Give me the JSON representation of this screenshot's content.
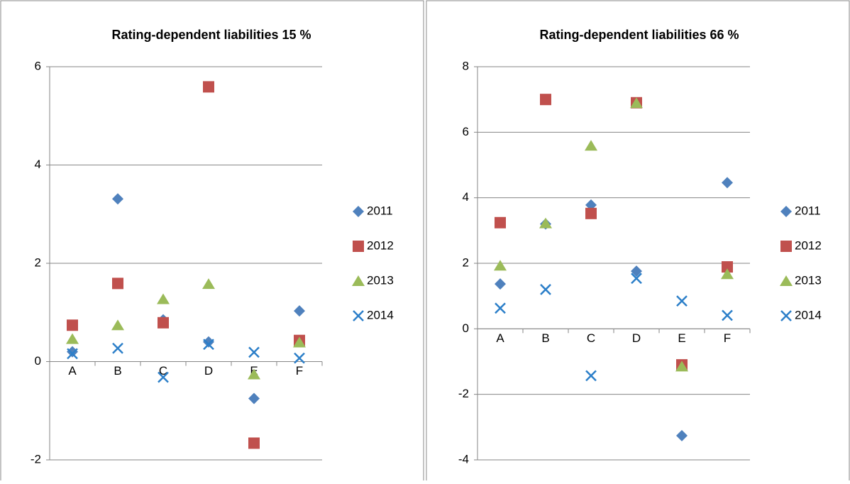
{
  "chart_data": [
    {
      "type": "scatter",
      "title": "Rating-dependent liabilities 15 %",
      "categories": [
        "A",
        "B",
        "C",
        "D",
        "E",
        "F"
      ],
      "ylim": [
        -2,
        6
      ],
      "yticks": [
        -2,
        0,
        2,
        4,
        6
      ],
      "grid": true,
      "series": [
        {
          "name": "2011",
          "color": "#4f81bd",
          "marker": "diamond",
          "values": [
            0.2,
            3.31,
            0.85,
            0.4,
            -0.75,
            1.03
          ]
        },
        {
          "name": "2012",
          "color": "#c0504d",
          "marker": "square",
          "values": [
            0.74,
            1.59,
            0.79,
            5.59,
            -1.66,
            0.43
          ]
        },
        {
          "name": "2013",
          "color": "#9bbb59",
          "marker": "triangle",
          "values": [
            0.46,
            0.74,
            1.27,
            1.58,
            -0.26,
            0.39
          ]
        },
        {
          "name": "2014",
          "color": "#2c7fc9",
          "marker": "x",
          "values": [
            0.16,
            0.27,
            -0.32,
            0.35,
            0.19,
            0.07
          ]
        }
      ]
    },
    {
      "type": "scatter",
      "title": "Rating-dependent liabilities 66 %",
      "categories": [
        "A",
        "B",
        "C",
        "D",
        "E",
        "F"
      ],
      "ylim": [
        -4,
        8
      ],
      "yticks": [
        -4,
        -2,
        0,
        2,
        4,
        6,
        8
      ],
      "grid": true,
      "series": [
        {
          "name": "2011",
          "color": "#4f81bd",
          "marker": "diamond",
          "values": [
            1.37,
            3.2,
            3.78,
            1.76,
            -3.26,
            4.46
          ]
        },
        {
          "name": "2012",
          "color": "#c0504d",
          "marker": "square",
          "values": [
            3.24,
            7.0,
            3.52,
            6.9,
            -1.1,
            1.89
          ]
        },
        {
          "name": "2013",
          "color": "#9bbb59",
          "marker": "triangle",
          "values": [
            1.93,
            3.22,
            5.59,
            6.89,
            -1.15,
            1.67
          ]
        },
        {
          "name": "2014",
          "color": "#2c7fc9",
          "marker": "x",
          "values": [
            0.63,
            1.2,
            -1.43,
            1.54,
            0.85,
            0.41
          ]
        }
      ]
    }
  ]
}
